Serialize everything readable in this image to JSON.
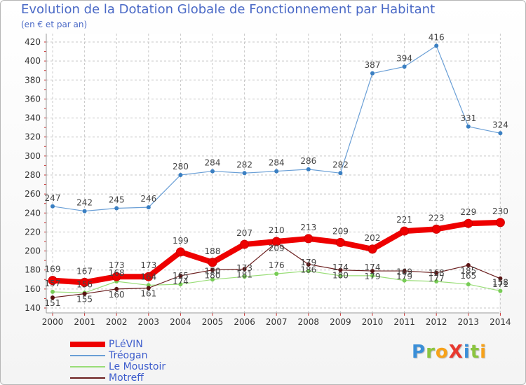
{
  "title": "Evolution de la Dotation Globale de Fonctionnement par Habitant",
  "subtitle": "(en € et par an)",
  "logo": {
    "text": "ProXiti",
    "letters": [
      {
        "ch": "P",
        "color": "#3a8fd8"
      },
      {
        "ch": "r",
        "color": "#8bc53f"
      },
      {
        "ch": "o",
        "color": "#f7a21b"
      },
      {
        "ch": "X",
        "color": "#e8392f"
      },
      {
        "ch": "i",
        "color": "#3a8fd8"
      },
      {
        "ch": "t",
        "color": "#8bc53f"
      },
      {
        "ch": "i",
        "color": "#f7a21b"
      }
    ]
  },
  "chart_data": {
    "type": "line",
    "title": "Evolution de la Dotation Globale de Fonctionnement par Habitant",
    "subtitle": "(en € et par an)",
    "x": [
      "2000",
      "2001",
      "2002",
      "2003",
      "2004",
      "2005",
      "2006",
      "2007",
      "2008",
      "2009",
      "2010",
      "2011",
      "2012",
      "2013",
      "2014"
    ],
    "ylim": [
      140,
      420
    ],
    "yticks": [
      140,
      160,
      180,
      200,
      220,
      240,
      260,
      280,
      300,
      320,
      340,
      360,
      380,
      400,
      420
    ],
    "grid": true,
    "legend_position": "bottom-left",
    "series": [
      {
        "name": "PLéVIN",
        "color": "#ee0000",
        "width": 8,
        "marker": 6,
        "values": [
          169,
          167,
          173,
          173,
          199,
          188,
          207,
          210,
          213,
          209,
          202,
          221,
          223,
          229,
          230
        ],
        "labels": [
          "169",
          "167",
          "173",
          "173",
          "199",
          "188",
          "207",
          "210",
          "213",
          "209",
          "202",
          "221",
          "223",
          "229",
          "230"
        ]
      },
      {
        "name": "Tréogan",
        "color": "#6a9fd6",
        "width": 1.2,
        "marker": 3,
        "values": [
          247,
          242,
          245,
          246,
          280,
          284,
          282,
          284,
          286,
          282,
          387,
          394,
          416,
          331,
          324
        ],
        "labels": [
          "247",
          "242",
          "245",
          "246",
          "280",
          "284",
          "282",
          "284",
          "286",
          "282",
          "387",
          "394",
          "416",
          "331",
          "324"
        ]
      },
      {
        "name": "Le Moustoir",
        "color": "#99dd77",
        "width": 1.2,
        "marker": 3,
        "values": [
          157,
          156,
          168,
          164,
          165,
          170,
          173,
          176,
          179,
          174,
          174,
          169,
          168,
          165,
          158
        ],
        "labels": [
          "157",
          "156",
          "168",
          "164",
          "165",
          "170",
          "173",
          "176",
          "179",
          "174",
          "174",
          "169",
          "168",
          "165",
          "158"
        ]
      },
      {
        "name": "Motreff",
        "color": "#6b1f1f",
        "width": 1.2,
        "marker": 3,
        "values": [
          151,
          155,
          160,
          161,
          174,
          180,
          181,
          209,
          186,
          180,
          179,
          179,
          177,
          185,
          171
        ],
        "labels": [
          "151",
          "155",
          "160",
          "161",
          "174",
          "180",
          "181",
          "209",
          "186",
          "180",
          "179",
          "179",
          "177",
          "185",
          "171"
        ]
      }
    ]
  }
}
